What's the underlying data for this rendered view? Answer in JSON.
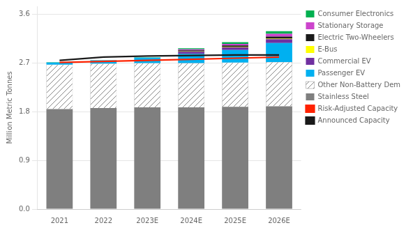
{
  "chart_data": {
    "type": "bar",
    "stacked": true,
    "grid": true,
    "legend": "right",
    "ylabel": "Million Metric Tonnes",
    "categories": [
      "2021",
      "2022",
      "2023E",
      "2024E",
      "2025E",
      "2026E"
    ],
    "series": [
      {
        "name": "Stainless Steel",
        "type": "bar",
        "color": "#7f7f7f",
        "values": [
          1.85,
          1.87,
          1.88,
          1.88,
          1.89,
          1.9
        ]
      },
      {
        "name": "Other Non-Battery Demand",
        "type": "bar",
        "color": "#ffffff",
        "values": [
          0.82,
          0.82,
          0.82,
          0.82,
          0.82,
          0.82
        ]
      },
      {
        "name": "Passenger EV",
        "type": "bar",
        "color": "#00b0f0",
        "values": [
          0.04,
          0.06,
          0.1,
          0.17,
          0.23,
          0.35
        ]
      },
      {
        "name": "Commercial EV",
        "type": "bar",
        "color": "#7030a0",
        "values": [
          0.0,
          0.0,
          0.0,
          0.04,
          0.05,
          0.07
        ]
      },
      {
        "name": "E-Bus",
        "type": "bar",
        "color": "#ffff00",
        "values": [
          0.0,
          0.0,
          0.0,
          0.005,
          0.005,
          0.01
        ]
      },
      {
        "name": "Electric Two-Wheelers",
        "type": "bar",
        "color": "#1a1a1a",
        "values": [
          0.0,
          0.0,
          0.0,
          0.02,
          0.03,
          0.04
        ]
      },
      {
        "name": "Stationary Storage",
        "type": "bar",
        "color": "#cc44cc",
        "values": [
          0.0,
          0.0,
          0.0,
          0.02,
          0.03,
          0.05
        ]
      },
      {
        "name": "Consumer Electronics",
        "type": "bar",
        "color": "#00b050",
        "values": [
          0.005,
          0.005,
          0.005,
          0.02,
          0.03,
          0.05
        ]
      },
      {
        "name": "Announced Capacity",
        "type": "line",
        "color": "#1a1a1a",
        "values": [
          2.75,
          2.81,
          2.83,
          2.84,
          2.85,
          2.85
        ]
      },
      {
        "name": "Risk-Adjusted Capacity",
        "type": "line",
        "color": "#ff2200",
        "values": [
          2.71,
          2.73,
          2.75,
          2.77,
          2.79,
          2.81
        ]
      }
    ],
    "ylim": [
      0.0,
      3.75
    ],
    "yticks": [
      {
        "value": 0.0,
        "label": "0.0"
      },
      0.9,
      1.8,
      2.7,
      3.6
    ]
  }
}
